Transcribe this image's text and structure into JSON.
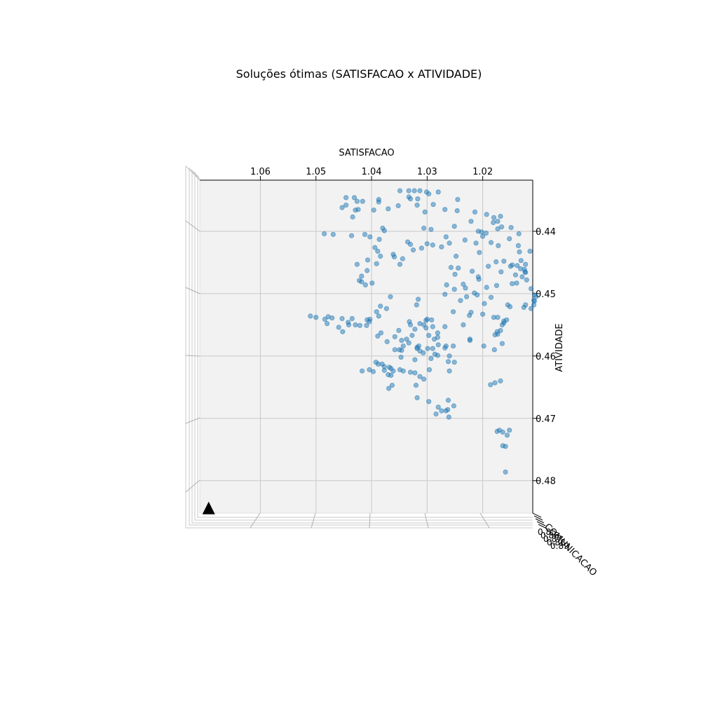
{
  "chart_data": {
    "type": "scatter",
    "title": "Soluções ótimas (SATISFACAO x ATIVIDADE)",
    "xlabel": "SATISFACAO",
    "ylabel": "ATIVIDADE",
    "zlabel": "COMUNICACAO",
    "z_tick_labels": [
      "0.85",
      "0.86",
      "0.87",
      "0.88",
      "0.89"
    ],
    "xlim": [
      1.011,
      1.0709
    ],
    "ylim": [
      0.4318,
      0.4852
    ],
    "x_ticks": [
      1.06,
      1.05,
      1.04,
      1.03,
      1.02
    ],
    "y_ticks": [
      0.44,
      0.45,
      0.46,
      0.47,
      0.48
    ],
    "x_tick_labels": [
      "1.06",
      "1.05",
      "1.04",
      "1.03",
      "1.02"
    ],
    "y_tick_labels": [
      "0.44",
      "0.45",
      "0.46",
      "0.47",
      "0.48"
    ],
    "grid": true,
    "marker_color": "#1f77b4",
    "highlight_marker": {
      "shape": "triangle",
      "color": "#000000",
      "x": 1.0693,
      "y": 0.4846
    },
    "series": [
      {
        "name": "Soluções",
        "points": [
          [
            1.0349,
            0.4335
          ],
          [
            1.0333,
            0.4335
          ],
          [
            1.0323,
            0.4335
          ],
          [
            1.0313,
            0.4335
          ],
          [
            1.0301,
            0.4337
          ],
          [
            1.0297,
            0.434
          ],
          [
            1.0333,
            0.4345
          ],
          [
            1.0317,
            0.4348
          ],
          [
            1.028,
            0.4337
          ],
          [
            1.0245,
            0.4349
          ],
          [
            1.0318,
            0.4358
          ],
          [
            1.0289,
            0.4357
          ],
          [
            1.0268,
            0.4365
          ],
          [
            1.0246,
            0.4367
          ],
          [
            1.0214,
            0.4369
          ],
          [
            1.0193,
            0.4373
          ],
          [
            1.018,
            0.4378
          ],
          [
            1.0168,
            0.4376
          ],
          [
            1.0181,
            0.4386
          ],
          [
            1.0173,
            0.4384
          ],
          [
            1.0173,
            0.4396
          ],
          [
            1.0166,
            0.4393
          ],
          [
            1.0149,
            0.4394
          ],
          [
            1.0135,
            0.4404
          ],
          [
            1.0115,
            0.4432
          ],
          [
            1.0134,
            0.4433
          ],
          [
            1.0123,
            0.4453
          ],
          [
            1.0131,
            0.4447
          ],
          [
            1.0121,
            0.4478
          ],
          [
            1.0123,
            0.4466
          ],
          [
            1.0124,
            0.4465
          ],
          [
            1.0113,
            0.4492
          ],
          [
            1.0107,
            0.4502
          ],
          [
            1.0104,
            0.4505
          ],
          [
            1.0108,
            0.4511
          ],
          [
            1.0147,
            0.4484
          ],
          [
            1.0139,
            0.4483
          ],
          [
            1.0162,
            0.4448
          ],
          [
            1.0167,
            0.4465
          ],
          [
            1.015,
            0.4456
          ],
          [
            1.0175,
            0.4487
          ],
          [
            1.0193,
            0.449
          ],
          [
            1.0208,
            0.4473
          ],
          [
            1.0219,
            0.4464
          ],
          [
            1.025,
            0.4469
          ],
          [
            1.0235,
            0.4485
          ],
          [
            1.0231,
            0.4491
          ],
          [
            1.0251,
            0.4493
          ],
          [
            1.0215,
            0.4499
          ],
          [
            1.0185,
            0.4506
          ],
          [
            1.0197,
            0.4516
          ],
          [
            1.0229,
            0.4505
          ],
          [
            1.024,
            0.4511
          ],
          [
            1.0268,
            0.4501
          ],
          [
            1.0265,
            0.4486
          ],
          [
            1.0221,
            0.453
          ],
          [
            1.0253,
            0.4529
          ],
          [
            1.02,
            0.4533
          ],
          [
            1.018,
            0.4538
          ],
          [
            1.0173,
            0.4538
          ],
          [
            1.0157,
            0.4542
          ],
          [
            1.0165,
            0.455
          ],
          [
            1.0174,
            0.4561
          ],
          [
            1.0178,
            0.4566
          ],
          [
            1.0165,
            0.458
          ],
          [
            1.0179,
            0.459
          ],
          [
            1.0198,
            0.4584
          ],
          [
            1.0223,
            0.4573
          ],
          [
            1.028,
            0.4582
          ],
          [
            1.0268,
            0.4587
          ],
          [
            1.026,
            0.46
          ],
          [
            1.0262,
            0.4609
          ],
          [
            1.0281,
            0.4599
          ],
          [
            1.0293,
            0.4604
          ],
          [
            1.0307,
            0.4595
          ],
          [
            1.0315,
            0.4584
          ],
          [
            1.0343,
            0.4584
          ],
          [
            1.0337,
            0.4573
          ],
          [
            1.0292,
            0.4542
          ],
          [
            1.0306,
            0.455
          ],
          [
            1.029,
            0.4553
          ],
          [
            1.0296,
            0.4622
          ],
          [
            1.0313,
            0.4633
          ],
          [
            1.032,
            0.4647
          ],
          [
            1.0306,
            0.4637
          ],
          [
            1.0322,
            0.4627
          ],
          [
            1.0343,
            0.4624
          ],
          [
            1.0361,
            0.4624
          ],
          [
            1.0365,
            0.462
          ],
          [
            1.0368,
            0.4618
          ],
          [
            1.0377,
            0.4623
          ],
          [
            1.037,
            0.463
          ],
          [
            1.0404,
            0.4622
          ],
          [
            1.0365,
            0.4631
          ],
          [
            1.0381,
            0.4613
          ],
          [
            1.0392,
            0.461
          ],
          [
            1.0363,
            0.4647
          ],
          [
            1.0369,
            0.4652
          ],
          [
            1.026,
            0.4624
          ],
          [
            1.0251,
            0.461
          ],
          [
            1.0297,
            0.4673
          ],
          [
            1.0262,
            0.4671
          ],
          [
            1.0252,
            0.468
          ],
          [
            1.028,
            0.4682
          ],
          [
            1.0284,
            0.4693
          ],
          [
            1.0274,
            0.4688
          ],
          [
            1.0261,
            0.4698
          ],
          [
            1.0263,
            0.4686
          ],
          [
            1.0266,
            0.4688
          ],
          [
            1.0318,
            0.4667
          ],
          [
            1.0178,
            0.4643
          ],
          [
            1.0186,
            0.4646
          ],
          [
            1.0168,
            0.464
          ],
          [
            1.0174,
            0.4721
          ],
          [
            1.017,
            0.4719
          ],
          [
            1.0164,
            0.4722
          ],
          [
            1.0152,
            0.4719
          ],
          [
            1.0156,
            0.4727
          ],
          [
            1.0159,
            0.4745
          ],
          [
            1.0164,
            0.4744
          ],
          [
            1.0159,
            0.4786
          ],
          [
            1.0403,
            0.4409
          ],
          [
            1.0446,
            0.4346
          ],
          [
            1.0431,
            0.4346
          ],
          [
            1.0416,
            0.4352
          ],
          [
            1.0426,
            0.4352
          ],
          [
            1.0446,
            0.4358
          ],
          [
            1.0424,
            0.4365
          ],
          [
            1.0387,
            0.4349
          ],
          [
            1.037,
            0.4364
          ],
          [
            1.0387,
            0.4353
          ],
          [
            1.0453,
            0.4362
          ],
          [
            1.0396,
            0.4366
          ],
          [
            1.0429,
            0.4366
          ],
          [
            1.0434,
            0.4377
          ],
          [
            1.0485,
            0.4404
          ],
          [
            1.0469,
            0.4405
          ],
          [
            1.0436,
            0.4407
          ],
          [
            1.0412,
            0.4405
          ],
          [
            1.0377,
            0.4399
          ],
          [
            1.038,
            0.4395
          ],
          [
            1.0386,
            0.4413
          ],
          [
            1.0394,
            0.4426
          ],
          [
            1.0389,
            0.4432
          ],
          [
            1.0384,
            0.444
          ],
          [
            1.0361,
            0.4437
          ],
          [
            1.0359,
            0.4441
          ],
          [
            1.0335,
            0.4417
          ],
          [
            1.0325,
            0.443
          ],
          [
            1.033,
            0.4421
          ],
          [
            1.03,
            0.442
          ],
          [
            1.031,
            0.4427
          ],
          [
            1.029,
            0.4422
          ],
          [
            1.0266,
            0.4409
          ],
          [
            1.026,
            0.4419
          ],
          [
            1.0274,
            0.4425
          ],
          [
            1.0293,
            0.4397
          ],
          [
            1.0304,
            0.4369
          ],
          [
            1.0352,
            0.4359
          ],
          [
            1.0306,
            0.4395
          ],
          [
            1.033,
            0.4348
          ],
          [
            1.0251,
            0.4392
          ],
          [
            1.0232,
            0.4414
          ],
          [
            1.0248,
            0.444
          ],
          [
            1.0202,
            0.4401
          ],
          [
            1.0221,
            0.4384
          ],
          [
            1.0257,
            0.4458
          ],
          [
            1.0244,
            0.4459
          ],
          [
            1.0407,
            0.4446
          ],
          [
            1.0418,
            0.4472
          ],
          [
            1.0422,
            0.4479
          ],
          [
            1.0426,
            0.4453
          ],
          [
            1.0418,
            0.4481
          ],
          [
            1.0411,
            0.4486
          ],
          [
            1.0399,
            0.4483
          ],
          [
            1.0349,
            0.4453
          ],
          [
            1.0344,
            0.4444
          ],
          [
            1.0408,
            0.4463
          ],
          [
            1.0391,
            0.4452
          ],
          [
            1.0366,
            0.4505
          ],
          [
            1.0384,
            0.452
          ],
          [
            1.0319,
            0.4518
          ],
          [
            1.0316,
            0.4509
          ],
          [
            1.0383,
            0.4563
          ],
          [
            1.0358,
            0.459
          ],
          [
            1.0346,
            0.4591
          ],
          [
            1.0318,
            0.4586
          ],
          [
            1.0327,
            0.4567
          ],
          [
            1.05,
            0.4538
          ],
          [
            1.051,
            0.4536
          ],
          [
            1.0484,
            0.4541
          ],
          [
            1.0478,
            0.4537
          ],
          [
            1.0453,
            0.454
          ],
          [
            1.0442,
            0.4546
          ],
          [
            1.0441,
            0.455
          ],
          [
            1.0429,
            0.455
          ],
          [
            1.0421,
            0.4551
          ],
          [
            1.0408,
            0.4542
          ],
          [
            1.0387,
            0.4536
          ],
          [
            1.0409,
            0.4551
          ],
          [
            1.0391,
            0.4529
          ],
          [
            1.0389,
            0.4568
          ],
          [
            1.0358,
            0.4569
          ],
          [
            1.0346,
            0.4575
          ],
          [
            1.0333,
            0.4579
          ],
          [
            1.0318,
            0.4588
          ],
          [
            1.0287,
            0.4573
          ],
          [
            1.0372,
            0.4577
          ],
          [
            1.0347,
            0.4602
          ],
          [
            1.0313,
            0.4592
          ],
          [
            1.0286,
            0.4597
          ],
          [
            1.029,
            0.4588
          ],
          [
            1.0299,
            0.4588
          ],
          [
            1.0322,
            0.4606
          ],
          [
            1.0281,
            0.457
          ],
          [
            1.0417,
            0.4624
          ],
          [
            1.0397,
            0.4625
          ],
          [
            1.0388,
            0.4613
          ],
          [
            1.0377,
            0.4617
          ],
          [
            1.0349,
            0.4622
          ],
          [
            1.033,
            0.4626
          ],
          [
            1.0297,
            0.4567
          ],
          [
            1.0266,
            0.4584
          ],
          [
            1.0253,
            0.4584
          ],
          [
            1.0223,
            0.4575
          ],
          [
            1.021,
            0.4502
          ],
          [
            1.0207,
            0.4477
          ],
          [
            1.019,
            0.4456
          ],
          [
            1.0176,
            0.4449
          ],
          [
            1.0147,
            0.4454
          ],
          [
            1.0172,
            0.4423
          ],
          [
            1.0136,
            0.4423
          ],
          [
            1.0152,
            0.4412
          ],
          [
            1.0212,
            0.4419
          ],
          [
            1.0208,
            0.44
          ],
          [
            1.0194,
            0.4403
          ],
          [
            1.02,
            0.4408
          ],
          [
            1.0206,
            0.4434
          ],
          [
            1.0185,
            0.4418
          ],
          [
            1.0132,
            0.446
          ],
          [
            1.0138,
            0.4455
          ],
          [
            1.0141,
            0.447
          ],
          [
            1.0129,
            0.4473
          ],
          [
            1.0125,
            0.4461
          ],
          [
            1.0107,
            0.4512
          ],
          [
            1.0108,
            0.4518
          ],
          [
            1.0113,
            0.4524
          ],
          [
            1.0126,
            0.4522
          ],
          [
            1.0123,
            0.4518
          ],
          [
            1.0155,
            0.4518
          ],
          [
            1.0151,
            0.4521
          ],
          [
            1.0162,
            0.4547
          ],
          [
            1.0162,
            0.4544
          ],
          [
            1.0168,
            0.4559
          ],
          [
            1.0173,
            0.4565
          ],
          [
            1.0224,
            0.4535
          ],
          [
            1.0235,
            0.455
          ],
          [
            1.0268,
            0.4553
          ],
          [
            1.0281,
            0.4563
          ],
          [
            1.0302,
            0.4555
          ],
          [
            1.0302,
            0.4543
          ],
          [
            1.03,
            0.4541
          ],
          [
            1.0322,
            0.4557
          ],
          [
            1.033,
            0.455
          ],
          [
            1.0313,
            0.4548
          ],
          [
            1.035,
            0.459
          ],
          [
            1.0332,
            0.4545
          ],
          [
            1.0351,
            0.4559
          ],
          [
            1.0373,
            0.4524
          ],
          [
            1.0403,
            0.4541
          ],
          [
            1.0404,
            0.4545
          ],
          [
            1.0435,
            0.454
          ],
          [
            1.0471,
            0.4539
          ],
          [
            1.0459,
            0.4554
          ],
          [
            1.048,
            0.4548
          ],
          [
            1.0452,
            0.4561
          ]
        ]
      }
    ]
  }
}
